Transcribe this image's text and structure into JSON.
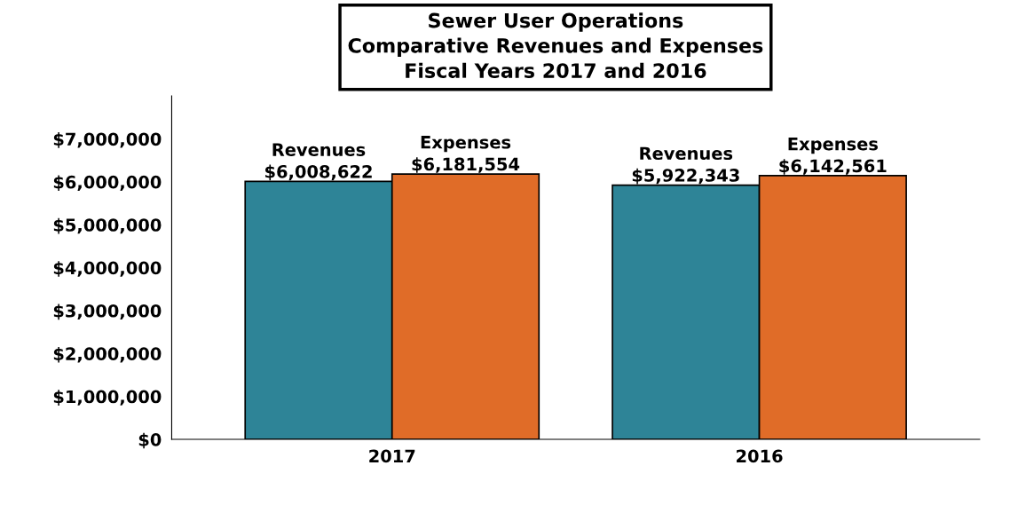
{
  "chart_data": {
    "type": "bar",
    "title": "Sewer User Operations\nComparative Revenues and Expenses\nFiscal Years 2017 and 2016",
    "categories": [
      "2017",
      "2016"
    ],
    "series": [
      {
        "name": "Revenues",
        "color": "#2e8497",
        "values": [
          6008622,
          5922343
        ],
        "value_labels": [
          "$6,008,622",
          "$5,922,343"
        ]
      },
      {
        "name": "Expenses",
        "color": "#e06c28",
        "values": [
          6181554,
          6142561
        ],
        "value_labels": [
          "$6,181,554",
          "$6,142,561"
        ]
      }
    ],
    "ylim": [
      0,
      8000000
    ],
    "yticks": [
      {
        "value": 0,
        "label": "$0"
      },
      {
        "value": 1000000,
        "label": "$1,000,000"
      },
      {
        "value": 2000000,
        "label": "$2,000,000"
      },
      {
        "value": 3000000,
        "label": "$3,000,000"
      },
      {
        "value": 4000000,
        "label": "$4,000,000"
      },
      {
        "value": 5000000,
        "label": "$5,000,000"
      },
      {
        "value": 6000000,
        "label": "$6,000,000"
      },
      {
        "value": 7000000,
        "label": "$7,000,000"
      }
    ],
    "grid": false,
    "legend": false
  }
}
